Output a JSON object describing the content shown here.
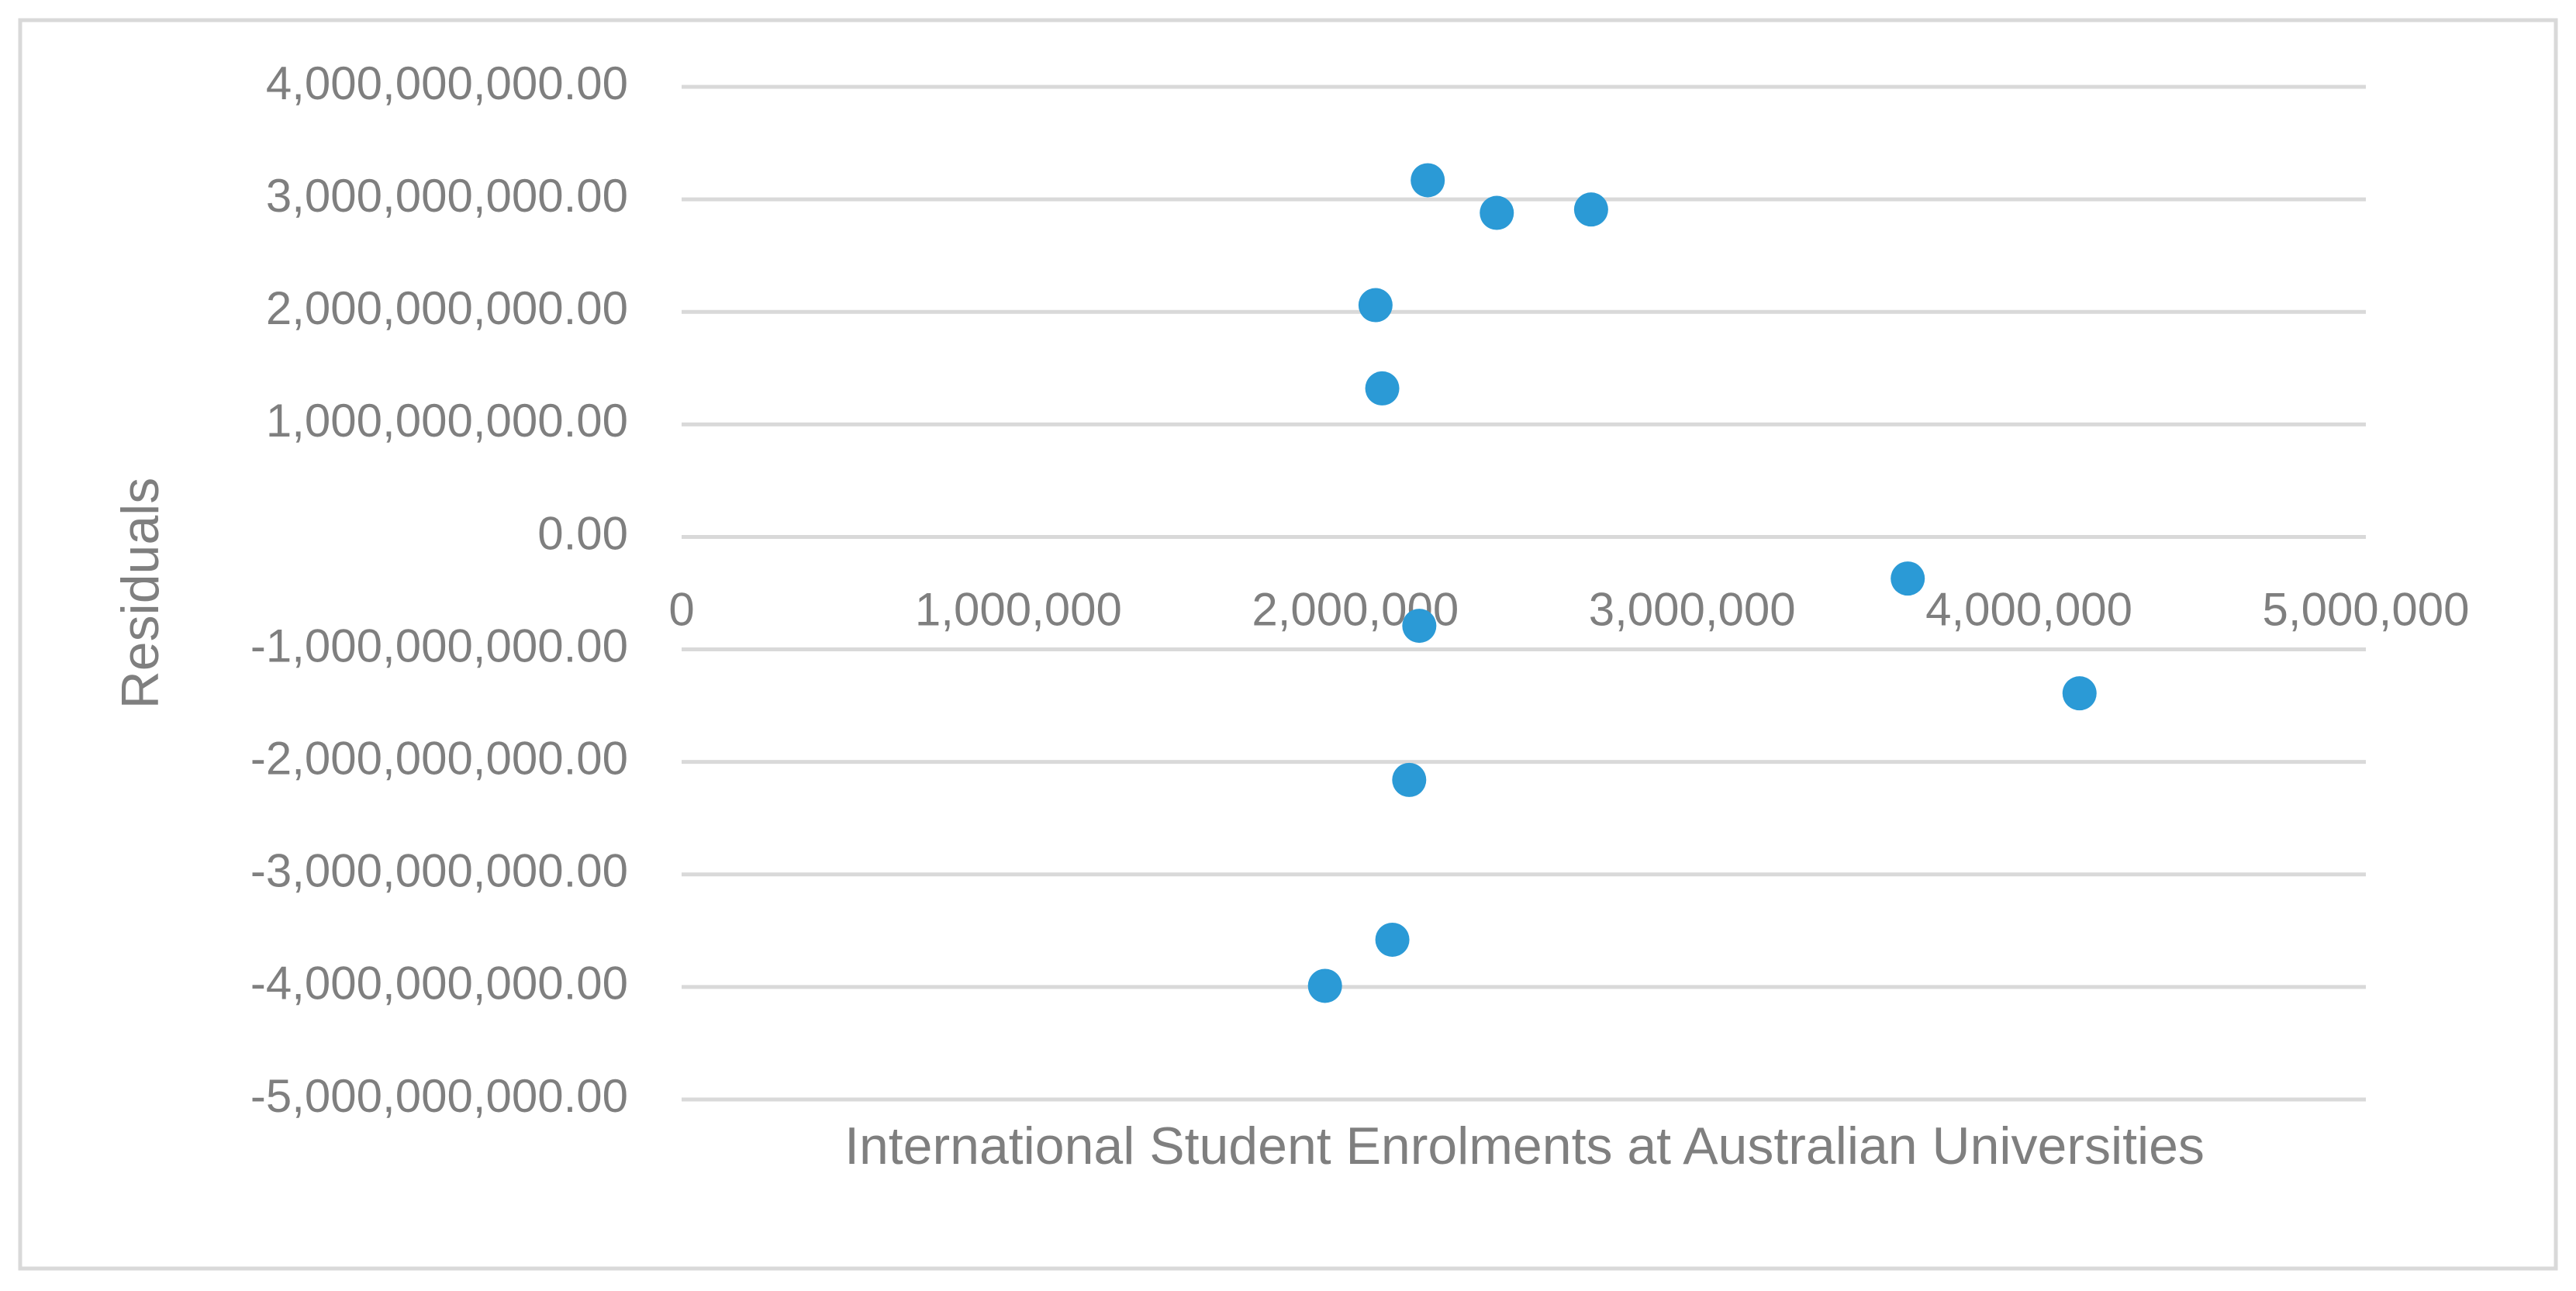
{
  "chart_data": {
    "type": "scatter",
    "x_label": "International Student Enrolments at Australian Universities",
    "y_label": "Residuals",
    "series": [
      {
        "color": "#2b9ad6",
        "x": [
          2215000,
          2420000,
          2700000,
          2060000,
          2080000,
          3640000,
          4150000,
          2190000,
          2160000,
          2110000,
          1910000
        ],
        "values": [
          3170000000,
          2880000000,
          2910000000,
          2060000000,
          1320000000,
          -370000000,
          -1390000000,
          -790000000,
          -2160000000,
          -3580000000,
          -3990000000
        ]
      }
    ],
    "xlim": [
      0,
      5000000
    ],
    "xticks": [
      0,
      {
        "value": 1000000,
        "label": "1,000,000"
      },
      {
        "value": 2000000,
        "label": "2,000,000"
      },
      {
        "value": 3000000,
        "label": "3,000,000"
      },
      {
        "value": 4000000,
        "label": "4,000,000"
      },
      {
        "value": 5000000,
        "label": "5,000,000"
      }
    ],
    "ylim": [
      -5000000000,
      4000000000
    ],
    "yticks": [
      {
        "value": 4000000000,
        "label": "4,000,000,000.00"
      },
      {
        "value": 3000000000,
        "label": "3,000,000,000.00"
      },
      {
        "value": 2000000000,
        "label": "2,000,000,000.00"
      },
      {
        "value": 1000000000,
        "label": "1,000,000,000.00"
      },
      {
        "value": 0,
        "label": "0.00"
      },
      {
        "value": -1000000000,
        "label": "-1,000,000,000.00"
      },
      {
        "value": -2000000000,
        "label": "-2,000,000,000.00"
      },
      {
        "value": -3000000000,
        "label": "-3,000,000,000.00"
      },
      {
        "value": -4000000000,
        "label": "-4,000,000,000.00"
      },
      {
        "value": -5000000000,
        "label": "-5,000,000,000.00"
      }
    ],
    "grid": true
  }
}
